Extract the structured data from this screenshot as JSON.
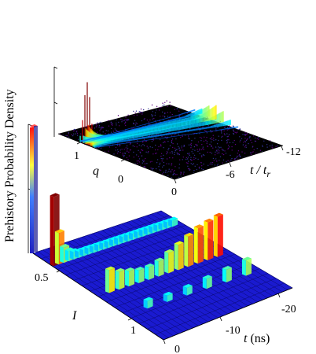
{
  "chart_data": [
    {
      "type": "surface",
      "title": "",
      "xlabel": "q",
      "ylabel_main": "t / t",
      "ylabel_sub": "r",
      "x_ticks": [
        "1",
        "0"
      ],
      "y_ticks": [
        "0",
        "-6",
        "-12"
      ],
      "x_range": [
        -0.5,
        1.5
      ],
      "y_range": [
        0,
        -13
      ],
      "colormap": "jet",
      "background": "black",
      "description_of_values": "probability density ridge that starts sharp and high near t/tr = 0 at q ≈ 1 and slowly broadens toward q ≈ 0.5 as t/tr approaches -12"
    },
    {
      "type": "bar3d",
      "title": "",
      "zlabel": "Prehistory Probability Density",
      "xlabel": "I",
      "ylabel": "t (ns)",
      "x_ticks": [
        "0.5",
        "1"
      ],
      "y_ticks": [
        "0",
        "-10",
        "-20"
      ],
      "colormap": "jet",
      "ridges": [
        {
          "I": 0.15,
          "t": [
            0,
            -1,
            -2,
            -3,
            -4,
            -5,
            -6,
            -7,
            -8,
            -9,
            -10,
            -11,
            -12,
            -13,
            -14,
            -15,
            -16,
            -17,
            -18,
            -19,
            -20,
            -21,
            -22,
            -23,
            -24
          ],
          "values": [
            0.55,
            0.25,
            0.12,
            0.08,
            0.06,
            0.05,
            0.05,
            0.05,
            0.05,
            0.05,
            0.05,
            0.05,
            0.05,
            0.05,
            0.05,
            0.05,
            0.05,
            0.05,
            0.05,
            0.05,
            0.05,
            0.05,
            0.05,
            0.05,
            0.05
          ]
        },
        {
          "I": 0.55,
          "t": [
            -2,
            -4,
            -6,
            -8,
            -10,
            -12,
            -14,
            -16,
            -18,
            -20,
            -22,
            -24
          ],
          "values": [
            0.18,
            0.14,
            0.12,
            0.1,
            0.1,
            0.12,
            0.16,
            0.2,
            0.24,
            0.28,
            0.3,
            0.32
          ]
        },
        {
          "I": 0.8,
          "t": [
            -4,
            -8,
            -12,
            -16,
            -20,
            -24
          ],
          "values": [
            0.06,
            0.05,
            0.06,
            0.08,
            0.1,
            0.12
          ]
        }
      ],
      "spike": {
        "I": 0.0,
        "t": 0,
        "value": 1.0
      }
    }
  ]
}
